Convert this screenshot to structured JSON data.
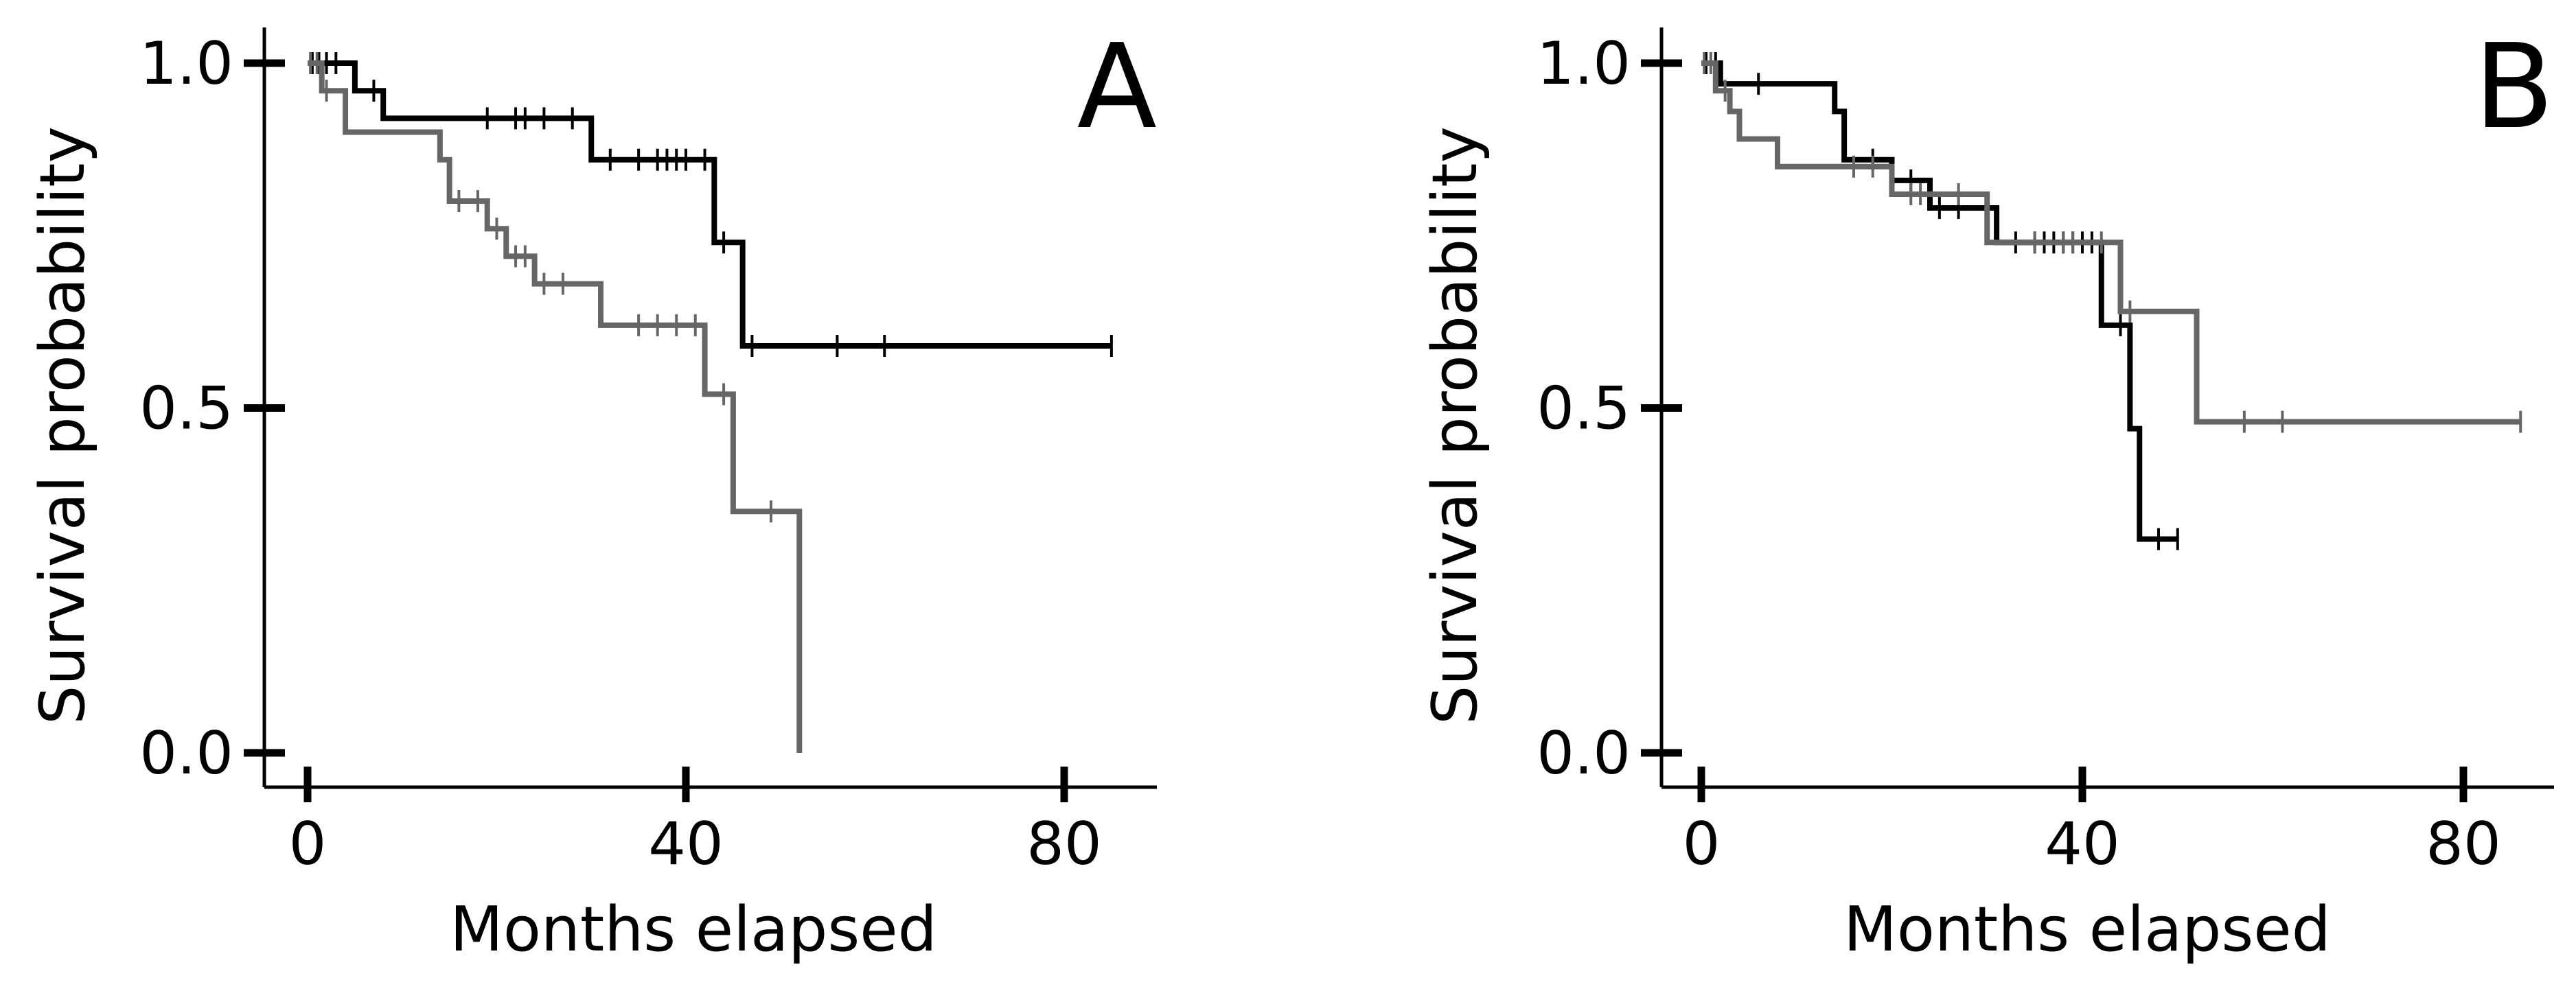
{
  "chart_data": [
    {
      "type": "line",
      "step": true,
      "panel_label": "A",
      "xlabel": "Months elapsed",
      "ylabel": "Survival probability",
      "xlim": [
        -4,
        90
      ],
      "ylim": [
        -0.05,
        1.05
      ],
      "xticks": [
        0,
        40,
        80
      ],
      "yticks": [
        0.0,
        0.5,
        1.0
      ],
      "xtick_labels": [
        "0",
        "40",
        "80"
      ],
      "ytick_labels": [
        "0.0",
        "0.5",
        "1.0"
      ],
      "grid": false,
      "legend": "none",
      "series": [
        {
          "color": "#000000",
          "steps": [
            [
              0,
              1.0
            ],
            [
              5,
              0.96
            ],
            [
              8,
              0.92
            ],
            [
              30,
              0.86
            ],
            [
              43,
              0.74
            ],
            [
              46,
              0.59
            ]
          ],
          "end_x": 85,
          "censored": [
            [
              0.5,
              1.0
            ],
            [
              1.2,
              1.0
            ],
            [
              2,
              1.0
            ],
            [
              3,
              1.0
            ],
            [
              7,
              0.96
            ],
            [
              19,
              0.92
            ],
            [
              22,
              0.92
            ],
            [
              23,
              0.92
            ],
            [
              25,
              0.92
            ],
            [
              28,
              0.92
            ],
            [
              32,
              0.86
            ],
            [
              35,
              0.86
            ],
            [
              37,
              0.86
            ],
            [
              38,
              0.86
            ],
            [
              39,
              0.86
            ],
            [
              40,
              0.86
            ],
            [
              42,
              0.86
            ],
            [
              44,
              0.74
            ],
            [
              47,
              0.59
            ],
            [
              56,
              0.59
            ],
            [
              61,
              0.59
            ],
            [
              85,
              0.59
            ]
          ]
        },
        {
          "color": "#666666",
          "steps": [
            [
              0,
              1.0
            ],
            [
              1.5,
              0.96
            ],
            [
              4,
              0.9
            ],
            [
              14,
              0.86
            ],
            [
              15,
              0.8
            ],
            [
              19,
              0.76
            ],
            [
              21,
              0.72
            ],
            [
              24,
              0.68
            ],
            [
              31,
              0.62
            ],
            [
              42,
              0.52
            ],
            [
              45,
              0.35
            ],
            [
              52,
              0.0
            ]
          ],
          "end_x": 52,
          "censored": [
            [
              0.3,
              1.0
            ],
            [
              1,
              1.0
            ],
            [
              2,
              0.96
            ],
            [
              16,
              0.8
            ],
            [
              18,
              0.8
            ],
            [
              20,
              0.76
            ],
            [
              22,
              0.72
            ],
            [
              23,
              0.72
            ],
            [
              25,
              0.68
            ],
            [
              27,
              0.68
            ],
            [
              35,
              0.62
            ],
            [
              37,
              0.62
            ],
            [
              39,
              0.62
            ],
            [
              41,
              0.62
            ],
            [
              44,
              0.52
            ],
            [
              49,
              0.35
            ]
          ]
        }
      ]
    },
    {
      "type": "line",
      "step": true,
      "panel_label": "B",
      "xlabel": "Months elapsed",
      "ylabel": "Survival probability",
      "xlim": [
        -4,
        90
      ],
      "ylim": [
        -0.05,
        1.05
      ],
      "xticks": [
        0,
        40,
        80
      ],
      "yticks": [
        0.0,
        0.5,
        1.0
      ],
      "xtick_labels": [
        "0",
        "40",
        "80"
      ],
      "ytick_labels": [
        "0.0",
        "0.5",
        "1.0"
      ],
      "grid": false,
      "legend": "none",
      "series": [
        {
          "color": "#000000",
          "steps": [
            [
              0,
              1.0
            ],
            [
              2,
              0.97
            ],
            [
              14,
              0.93
            ],
            [
              15,
              0.86
            ],
            [
              20,
              0.83
            ],
            [
              24,
              0.79
            ],
            [
              31,
              0.74
            ],
            [
              42,
              0.62
            ],
            [
              45,
              0.47
            ],
            [
              46,
              0.31
            ]
          ],
          "end_x": 50,
          "censored": [
            [
              0.5,
              1.0
            ],
            [
              1.5,
              1.0
            ],
            [
              6,
              0.97
            ],
            [
              18,
              0.86
            ],
            [
              22,
              0.83
            ],
            [
              25,
              0.79
            ],
            [
              27,
              0.79
            ],
            [
              33,
              0.74
            ],
            [
              35,
              0.74
            ],
            [
              36,
              0.74
            ],
            [
              37,
              0.74
            ],
            [
              38,
              0.74
            ],
            [
              39,
              0.74
            ],
            [
              40,
              0.74
            ],
            [
              41,
              0.74
            ],
            [
              44,
              0.62
            ],
            [
              48,
              0.31
            ],
            [
              50,
              0.31
            ]
          ]
        },
        {
          "color": "#666666",
          "steps": [
            [
              0,
              1.0
            ],
            [
              1.5,
              0.96
            ],
            [
              3,
              0.93
            ],
            [
              4,
              0.89
            ],
            [
              8,
              0.85
            ],
            [
              20,
              0.81
            ],
            [
              30,
              0.74
            ],
            [
              44,
              0.64
            ],
            [
              52,
              0.48
            ]
          ],
          "end_x": 86,
          "censored": [
            [
              0.3,
              1.0
            ],
            [
              1,
              1.0
            ],
            [
              2.5,
              0.96
            ],
            [
              16,
              0.85
            ],
            [
              18,
              0.85
            ],
            [
              22,
              0.81
            ],
            [
              23,
              0.81
            ],
            [
              27,
              0.81
            ],
            [
              35,
              0.74
            ],
            [
              38,
              0.74
            ],
            [
              39,
              0.74
            ],
            [
              42,
              0.74
            ],
            [
              45,
              0.64
            ],
            [
              57,
              0.48
            ],
            [
              61,
              0.48
            ],
            [
              86,
              0.48
            ]
          ]
        }
      ]
    }
  ]
}
